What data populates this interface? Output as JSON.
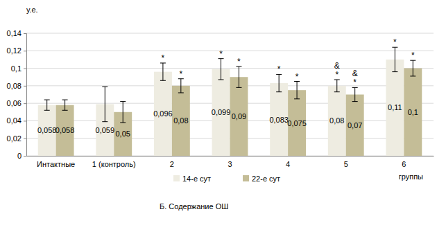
{
  "chart_data": {
    "type": "bar",
    "title": "Б. Содержание ОШ",
    "y_label": "у.е.",
    "x_label": "группы",
    "categories": [
      "Интактные",
      "1 (контроль)",
      "2",
      "3",
      "4",
      "5",
      "6"
    ],
    "series": [
      {
        "name": "14-е сут",
        "color": "#eeece1",
        "values": [
          0.058,
          0.059,
          0.096,
          0.099,
          0.083,
          0.08,
          0.11
        ],
        "value_labels": [
          "0,058",
          "0,059",
          "0,096",
          "0,099",
          "0,083",
          "0,08",
          "0,11"
        ],
        "errors": [
          0.006,
          0.02,
          0.01,
          0.012,
          0.01,
          0.007,
          0.014
        ],
        "annotations": [
          null,
          null,
          [
            "*"
          ],
          [
            "*"
          ],
          [
            "*"
          ],
          [
            "&",
            "*"
          ],
          [
            "*"
          ]
        ]
      },
      {
        "name": "22-е сут",
        "color": "#c4bd97",
        "values": [
          0.058,
          0.05,
          0.08,
          0.09,
          0.075,
          0.07,
          0.1
        ],
        "value_labels": [
          "0,058",
          "0,05",
          "0,08",
          "0,09",
          "0,075",
          "0,07",
          "0,1"
        ],
        "errors": [
          0.006,
          0.012,
          0.008,
          0.012,
          0.01,
          0.008,
          0.009
        ],
        "annotations": [
          null,
          null,
          [
            "*"
          ],
          [
            "*"
          ],
          [
            "*"
          ],
          [
            "&",
            "*"
          ],
          [
            "*"
          ]
        ]
      }
    ],
    "ylim": [
      0,
      0.14
    ],
    "yticks": [
      0,
      {
        "value": 0.02,
        "label": "0,02"
      },
      {
        "value": 0.04,
        "label": "0,04"
      },
      {
        "value": 0.06,
        "label": "0,06"
      },
      {
        "value": 0.08,
        "label": "0,08"
      },
      {
        "value": 0.1,
        "label": "0,1"
      },
      {
        "value": 0.12,
        "label": "0,12"
      },
      {
        "value": 0.14,
        "label": "0,14"
      }
    ],
    "grid": true,
    "data_labels": true,
    "legend": "bottom"
  }
}
